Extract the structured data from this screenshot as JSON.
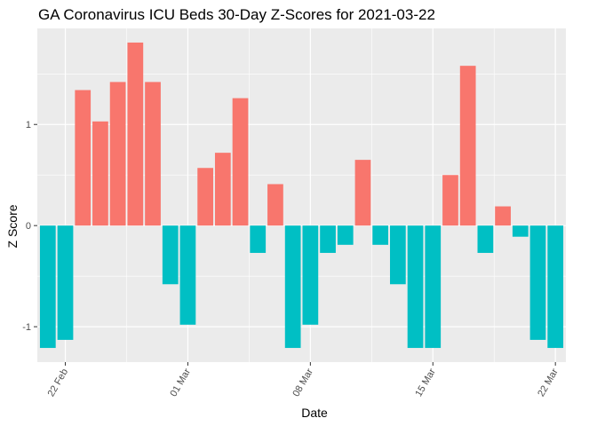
{
  "chart_data": {
    "type": "bar",
    "title": "GA Coronavirus ICU Beds 30-Day Z-Scores for 2021-03-22",
    "xlabel": "Date",
    "ylabel": "Z Score",
    "x": [
      "2021-02-21",
      "2021-02-22",
      "2021-02-23",
      "2021-02-24",
      "2021-02-25",
      "2021-02-26",
      "2021-02-27",
      "2021-02-28",
      "2021-03-01",
      "2021-03-02",
      "2021-03-03",
      "2021-03-04",
      "2021-03-05",
      "2021-03-06",
      "2021-03-07",
      "2021-03-08",
      "2021-03-09",
      "2021-03-10",
      "2021-03-11",
      "2021-03-12",
      "2021-03-13",
      "2021-03-14",
      "2021-03-15",
      "2021-03-16",
      "2021-03-17",
      "2021-03-18",
      "2021-03-19",
      "2021-03-20",
      "2021-03-21",
      "2021-03-22"
    ],
    "values": [
      -1.21,
      -1.13,
      1.34,
      1.03,
      1.42,
      1.81,
      1.42,
      -0.58,
      -0.98,
      0.57,
      0.72,
      1.26,
      -0.27,
      0.41,
      -1.21,
      -0.98,
      -0.27,
      -0.19,
      0.65,
      -0.19,
      -0.58,
      -1.21,
      -1.21,
      0.5,
      1.58,
      -0.27,
      0.19,
      -0.11,
      -1.13,
      -1.21
    ],
    "ylim": [
      -1.35,
      1.95
    ],
    "y_ticks": [
      -1,
      0,
      1
    ],
    "y_tick_labels": [
      "-1",
      "0",
      "1"
    ],
    "x_ticks": [
      "2021-02-22",
      "2021-03-01",
      "2021-03-08",
      "2021-03-15",
      "2021-03-22"
    ],
    "x_tick_labels": [
      "22 Feb",
      "01 Mar",
      "08 Mar",
      "15 Mar",
      "22 Mar"
    ],
    "colors": {
      "positive": "#F8766D",
      "negative": "#00BFC4",
      "panel": "#EBEBEB",
      "grid": "#FFFFFF",
      "tick": "#333333"
    },
    "grid": true,
    "legend": "none"
  }
}
